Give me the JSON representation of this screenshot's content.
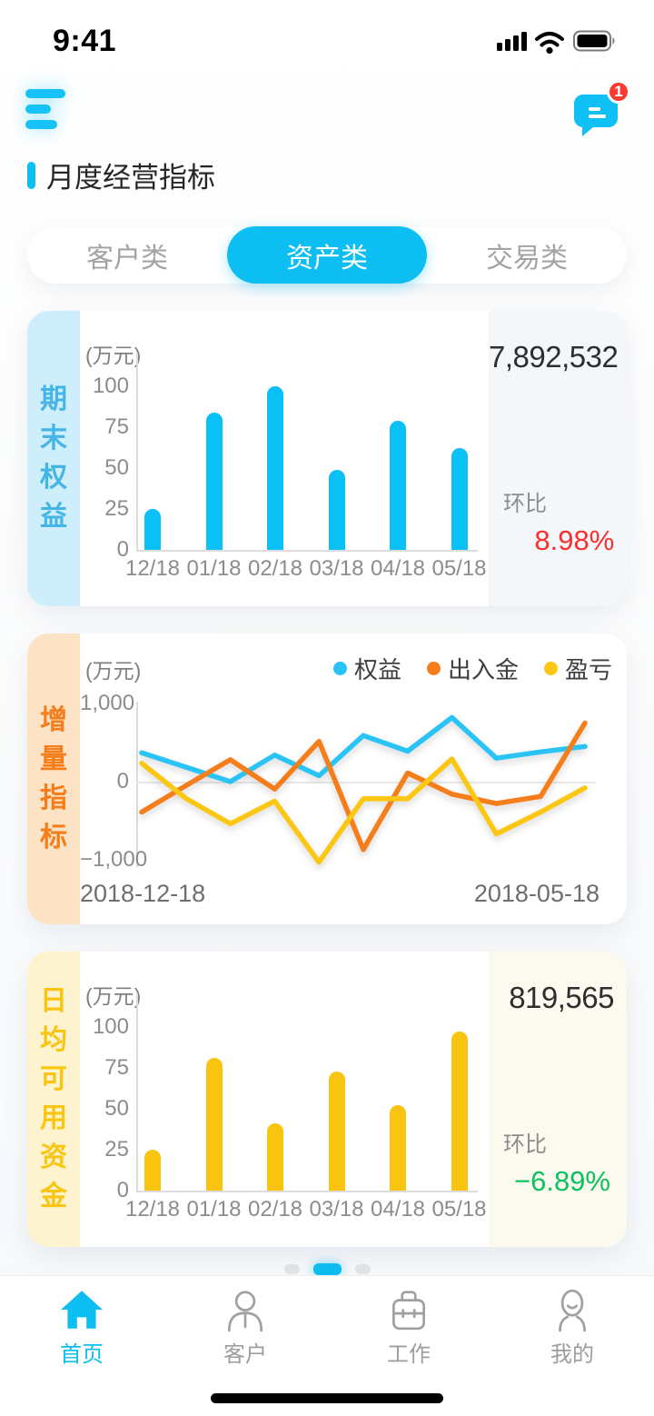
{
  "status_bar": {
    "time": "9:41",
    "icons": [
      "cellular-signal-icon",
      "wifi-icon",
      "battery-icon"
    ]
  },
  "header": {
    "badge_count": "1"
  },
  "page_title": "月度经营指标",
  "tabs": [
    {
      "label": "客户类",
      "active": false
    },
    {
      "label": "资产类",
      "active": true
    },
    {
      "label": "交易类",
      "active": false
    }
  ],
  "colors": {
    "accent_blue": "#0cbef2",
    "bar_blue": "#0ac0f5",
    "line_orange": "#f57e1a",
    "bar_yellow": "#f9c40f",
    "ratio_red": "#fb2e2e",
    "ratio_green": "#0cc25f"
  },
  "chart_data": [
    {
      "type": "bar",
      "title": "期末权益",
      "unit": "(万元)",
      "categories": [
        "12/18",
        "01/18",
        "02/18",
        "03/18",
        "04/18",
        "05/18"
      ],
      "values": [
        25,
        84,
        100,
        49,
        79,
        62
      ],
      "ylim": [
        0,
        100
      ],
      "yticks": [
        0,
        25,
        50,
        75,
        100
      ],
      "bar_color": "#0ac0f5",
      "strip_bg": "#cfeefb",
      "title_color": "#45b5e5",
      "panel_bg": "#f3f7fa",
      "summary_value": "7,892,532",
      "ratio_label": "环比",
      "ratio_value": "8.98%",
      "ratio_color": "#fb2e2e"
    },
    {
      "type": "line",
      "title": "增量指标",
      "unit": "(万元)",
      "strip_bg": "#fde3c6",
      "title_color": "#f57e1a",
      "ylim": [
        -1000,
        1000
      ],
      "yticks": [
        {
          "label": "1,000",
          "value": 1000
        },
        {
          "label": "0",
          "value": 0
        },
        {
          "label": "−1,000",
          "value": -1000
        }
      ],
      "x_start": "2018-12-18",
      "x_end": "2018-05-18",
      "legend_position": "top-right",
      "series": [
        {
          "name": "权益",
          "color": "#2ac3f5",
          "values": [
            370,
            185,
            0,
            340,
            75,
            590,
            390,
            820,
            300,
            380,
            450
          ]
        },
        {
          "name": "出入金",
          "color": "#f57e1a",
          "values": [
            -390,
            -50,
            280,
            -95,
            515,
            -870,
            110,
            -160,
            -280,
            -190,
            750
          ]
        },
        {
          "name": "盈亏",
          "color": "#fbc713",
          "values": [
            235,
            -215,
            -540,
            -250,
            -1030,
            -220,
            -220,
            290,
            -670,
            -390,
            -80
          ]
        }
      ]
    },
    {
      "type": "bar",
      "title": "日均可用资金",
      "unit": "(万元)",
      "categories": [
        "12/18",
        "01/18",
        "02/18",
        "03/18",
        "04/18",
        "05/18"
      ],
      "values": [
        25,
        81,
        41,
        73,
        52,
        97
      ],
      "ylim": [
        0,
        100
      ],
      "yticks": [
        0,
        25,
        50,
        75,
        100
      ],
      "bar_color": "#f9c40f",
      "strip_bg": "#fdf4cf",
      "title_color": "#f9c412",
      "panel_bg": "#fcf9ee",
      "summary_value": "819,565",
      "ratio_label": "环比",
      "ratio_value": "−6.89%",
      "ratio_color": "#0cc25f"
    }
  ],
  "pagination": {
    "count": 3,
    "active_index": 1
  },
  "tab_bar": [
    {
      "label": "首页",
      "icon": "home-icon",
      "active": true
    },
    {
      "label": "客户",
      "icon": "customer-icon",
      "active": false
    },
    {
      "label": "工作",
      "icon": "work-icon",
      "active": false
    },
    {
      "label": "我的",
      "icon": "profile-icon",
      "active": false
    }
  ]
}
